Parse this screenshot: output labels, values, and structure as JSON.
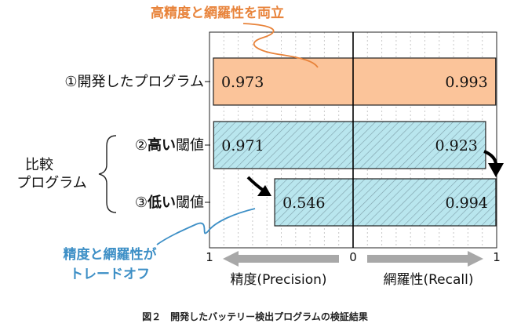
{
  "annotations": {
    "top": "高精度と網羅性を両立",
    "bottom_line1": "精度と網羅性が",
    "bottom_line2": "トレードオフ",
    "orange": "#e8833a",
    "blue": "#3d8fc6"
  },
  "group_label": {
    "line1": "比較",
    "line2": "プログラム"
  },
  "row_labels": [
    {
      "num": "①",
      "bold": "",
      "text": "開発したプログラム"
    },
    {
      "num": "②",
      "bold": "高い",
      "text": "閾値"
    },
    {
      "num": "③",
      "bold": "低い",
      "text": "閾値"
    }
  ],
  "axis": {
    "left_tick": "1",
    "center_tick": "0",
    "right_tick": "1",
    "left_name": "精度(Precision)",
    "right_name": "網羅性(Recall)"
  },
  "caption": "図２　開発したバッテリー検出プログラムの検証結果",
  "chart_data": {
    "type": "bar",
    "orientation": "horizontal-butterfly",
    "categories": [
      "①開発したプログラム",
      "②高い閾値",
      "③低い閾値"
    ],
    "series": [
      {
        "name": "精度(Precision)",
        "values": [
          0.973,
          0.971,
          0.546
        ]
      },
      {
        "name": "網羅性(Recall)",
        "values": [
          0.993,
          0.923,
          0.994
        ]
      }
    ],
    "xlim": [
      1,
      0,
      1
    ],
    "xlabel_left": "精度(Precision)",
    "xlabel_right": "網羅性(Recall)",
    "bar_styles": [
      "solid-orange",
      "hatched-blue",
      "hatched-blue"
    ],
    "colors": {
      "orange_fill": "#fbc49a",
      "blue_fill": "#b9e6ee",
      "hatch": "#7d9ea8"
    }
  }
}
